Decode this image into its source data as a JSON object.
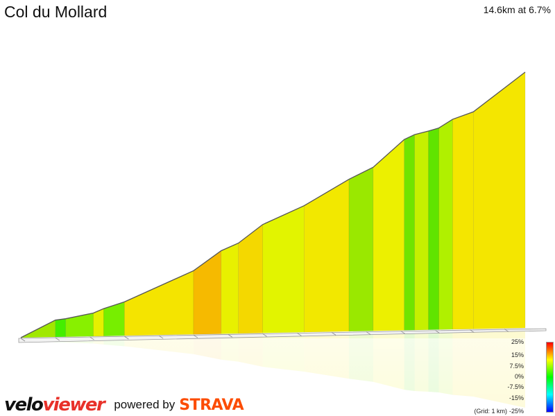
{
  "header": {
    "title": "Col du Mollard",
    "summary": "14.6km at 6.7%"
  },
  "legend": {
    "labels": [
      "25%",
      "15%",
      "7.5%",
      "0%",
      "-7.5%",
      "-15%",
      "-25%"
    ],
    "grid_note": "(Grid: 1 km)",
    "gradient_colors": [
      "#ff0000",
      "#ffff00",
      "#00ff00",
      "#00ffff",
      "#0000ff"
    ]
  },
  "branding": {
    "logo_part1": "velo",
    "logo_part2": "viewer",
    "powered_by": "powered by",
    "partner": "STRAVA"
  },
  "chart_data": {
    "type": "area",
    "title": "Col du Mollard",
    "xlabel": "",
    "ylabel": "",
    "x_unit": "km",
    "y_unit": "m (relative)",
    "grid": "1 km",
    "distance_km": 14.6,
    "avg_gradient_pct": 6.7,
    "x": [
      0,
      1.0,
      1.3,
      2.1,
      2.4,
      3.0,
      5.0,
      5.8,
      6.3,
      7.0,
      8.2,
      9.5,
      10.2,
      11.1,
      11.4,
      11.8,
      12.1,
      12.5,
      13.1,
      14.6
    ],
    "y": [
      0,
      72,
      77,
      99,
      117,
      144,
      271,
      354,
      385,
      462,
      539,
      648,
      697,
      813,
      833,
      847,
      859,
      895,
      925,
      1090
    ],
    "segment_colors": [
      "#a0e800",
      "#44ee00",
      "#88f000",
      "#e6f000",
      "#77ee00",
      "#f4e400",
      "#f6ba00",
      "#e8f000",
      "#f4d800",
      "#e2f400",
      "#f2e800",
      "#9ae800",
      "#ecf000",
      "#70e400",
      "#c6f000",
      "#60e400",
      "#b0f000",
      "#f4e600",
      "#f4e600"
    ]
  }
}
